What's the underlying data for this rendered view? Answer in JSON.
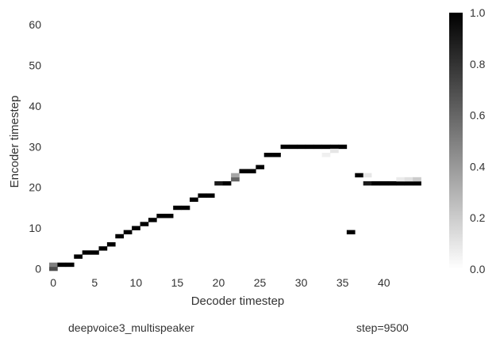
{
  "chart_data": {
    "type": "heatmap",
    "title": "",
    "xlabel": "Decoder timestep",
    "ylabel": "Encoder timestep",
    "xlim": [
      -0.5,
      45.5
    ],
    "ylim": [
      -0.5,
      64.5
    ],
    "x_ticks": [
      0,
      5,
      10,
      15,
      20,
      25,
      30,
      35,
      40
    ],
    "y_ticks": [
      0,
      10,
      20,
      30,
      40,
      50,
      60
    ],
    "colormap": "gray_r",
    "value_range": [
      0.0,
      1.0
    ],
    "colorbar": {
      "ticks": [
        0.0,
        0.2,
        0.4,
        0.6,
        0.8,
        1.0
      ],
      "tick_labels": [
        "0.0",
        "0.2",
        "0.4",
        "0.6",
        "0.8",
        "1.0"
      ]
    },
    "grid": false,
    "cells": [
      {
        "x": 0,
        "y": 0,
        "v": 0.7
      },
      {
        "x": 0,
        "y": 1,
        "v": 0.5
      },
      {
        "x": 1,
        "y": 1,
        "v": 1.0
      },
      {
        "x": 2,
        "y": 1,
        "v": 1.0
      },
      {
        "x": 3,
        "y": 3,
        "v": 1.0
      },
      {
        "x": 4,
        "y": 4,
        "v": 1.0
      },
      {
        "x": 5,
        "y": 4,
        "v": 1.0
      },
      {
        "x": 6,
        "y": 5,
        "v": 1.0
      },
      {
        "x": 7,
        "y": 6,
        "v": 1.0
      },
      {
        "x": 8,
        "y": 8,
        "v": 1.0
      },
      {
        "x": 9,
        "y": 9,
        "v": 1.0
      },
      {
        "x": 10,
        "y": 10,
        "v": 1.0
      },
      {
        "x": 11,
        "y": 11,
        "v": 1.0
      },
      {
        "x": 12,
        "y": 12,
        "v": 1.0
      },
      {
        "x": 13,
        "y": 13,
        "v": 1.0
      },
      {
        "x": 14,
        "y": 13,
        "v": 1.0
      },
      {
        "x": 15,
        "y": 15,
        "v": 1.0
      },
      {
        "x": 16,
        "y": 15,
        "v": 1.0
      },
      {
        "x": 17,
        "y": 17,
        "v": 1.0
      },
      {
        "x": 18,
        "y": 18,
        "v": 1.0
      },
      {
        "x": 19,
        "y": 18,
        "v": 1.0
      },
      {
        "x": 20,
        "y": 21,
        "v": 0.9
      },
      {
        "x": 21,
        "y": 21,
        "v": 1.0
      },
      {
        "x": 22,
        "y": 22,
        "v": 0.6
      },
      {
        "x": 22,
        "y": 23,
        "v": 0.35
      },
      {
        "x": 23,
        "y": 24,
        "v": 1.0
      },
      {
        "x": 24,
        "y": 24,
        "v": 1.0
      },
      {
        "x": 25,
        "y": 25,
        "v": 1.0
      },
      {
        "x": 26,
        "y": 28,
        "v": 1.0
      },
      {
        "x": 27,
        "y": 28,
        "v": 1.0
      },
      {
        "x": 28,
        "y": 30,
        "v": 1.0
      },
      {
        "x": 29,
        "y": 30,
        "v": 1.0
      },
      {
        "x": 30,
        "y": 30,
        "v": 1.0
      },
      {
        "x": 31,
        "y": 30,
        "v": 1.0
      },
      {
        "x": 32,
        "y": 30,
        "v": 1.0
      },
      {
        "x": 33,
        "y": 30,
        "v": 1.0
      },
      {
        "x": 34,
        "y": 30,
        "v": 1.0
      },
      {
        "x": 35,
        "y": 30,
        "v": 1.0
      },
      {
        "x": 33,
        "y": 28,
        "v": 0.06
      },
      {
        "x": 34,
        "y": 29,
        "v": 0.1
      },
      {
        "x": 36,
        "y": 9,
        "v": 1.0
      },
      {
        "x": 37,
        "y": 23,
        "v": 1.0
      },
      {
        "x": 38,
        "y": 23,
        "v": 0.1
      },
      {
        "x": 38,
        "y": 21,
        "v": 0.9
      },
      {
        "x": 39,
        "y": 21,
        "v": 1.0
      },
      {
        "x": 40,
        "y": 21,
        "v": 1.0
      },
      {
        "x": 41,
        "y": 21,
        "v": 1.0
      },
      {
        "x": 42,
        "y": 21,
        "v": 1.0
      },
      {
        "x": 43,
        "y": 21,
        "v": 1.0
      },
      {
        "x": 44,
        "y": 21,
        "v": 1.0
      },
      {
        "x": 42,
        "y": 22,
        "v": 0.08
      },
      {
        "x": 43,
        "y": 22,
        "v": 0.12
      },
      {
        "x": 44,
        "y": 22,
        "v": 0.2
      }
    ]
  },
  "captions": {
    "model": "deepvoice3_multispeaker",
    "step": "step=9500"
  }
}
